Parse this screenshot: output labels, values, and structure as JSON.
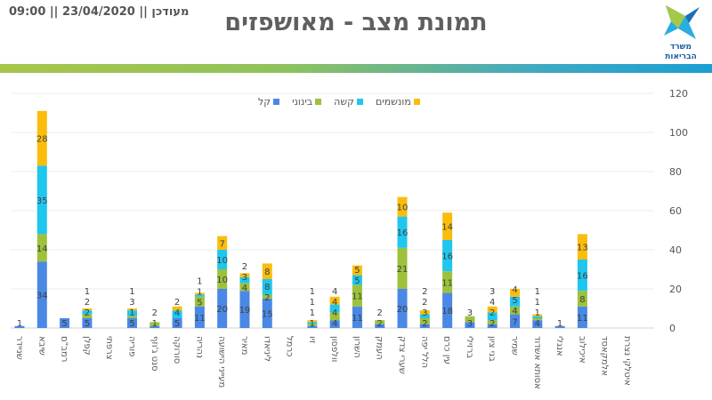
{
  "header": {
    "title": "תמונת מצב - מאושפזים",
    "updated": "מעודכן || 23/04/2020 || 09:00",
    "logo_text": "משרד הבריאות"
  },
  "chart_data": {
    "type": "bar",
    "stacked": true,
    "title": "",
    "xlabel": "",
    "ylabel": "",
    "ylim": [
      0,
      120
    ],
    "yticks": [
      0,
      20,
      40,
      60,
      80,
      100,
      120
    ],
    "y_axis_side": "right",
    "grid": true,
    "legend_placement": "top",
    "categories": [
      "שניידר",
      "שיבא",
      "רמב\"ם",
      "קפלן",
      "צרפתי",
      "פוריה",
      "סנט ג'וזף",
      "סורוקה",
      "נהריה",
      "מעייני הישועה",
      "מאיר",
      "ליניאדו",
      "כרמל",
      "זיו",
      "וולפסון",
      "השרון",
      "העמק",
      "שערי צדק",
      "הלל יפה",
      "עין כרם",
      "ברזילי",
      "בני ציון",
      "שמיר",
      "אסותא אשדוד",
      "אנגלי",
      "איכילוב",
      "אלמקאסד",
      "איטלקי נצרת"
    ],
    "series": [
      {
        "name": "קל",
        "color": "#4a88e6",
        "values": [
          1,
          34,
          5,
          5,
          0,
          5,
          1,
          5,
          11,
          20,
          19,
          15,
          0,
          1,
          4,
          11,
          2,
          20,
          2,
          18,
          3,
          2,
          7,
          4,
          1,
          11,
          0,
          0
        ]
      },
      {
        "name": "בינוני",
        "color": "#9dc13b",
        "values": [
          0,
          14,
          0,
          2,
          0,
          1,
          2,
          0,
          5,
          10,
          4,
          2,
          0,
          1,
          4,
          11,
          2,
          21,
          3,
          11,
          3,
          2,
          4,
          1,
          0,
          8,
          0,
          0
        ]
      },
      {
        "name": "קשה",
        "color": "#1fc6ee",
        "values": [
          0,
          35,
          0,
          2,
          0,
          3,
          0,
          4,
          1,
          10,
          3,
          8,
          0,
          1,
          4,
          5,
          0,
          16,
          2,
          16,
          0,
          4,
          5,
          1,
          0,
          16,
          0,
          0
        ]
      },
      {
        "name": "מונשמים",
        "color": "#fbbd0c",
        "values": [
          0,
          28,
          0,
          1,
          0,
          1,
          0,
          2,
          1,
          7,
          2,
          8,
          0,
          1,
          4,
          5,
          0,
          10,
          2,
          14,
          0,
          3,
          4,
          1,
          0,
          13,
          0,
          0
        ]
      }
    ]
  }
}
